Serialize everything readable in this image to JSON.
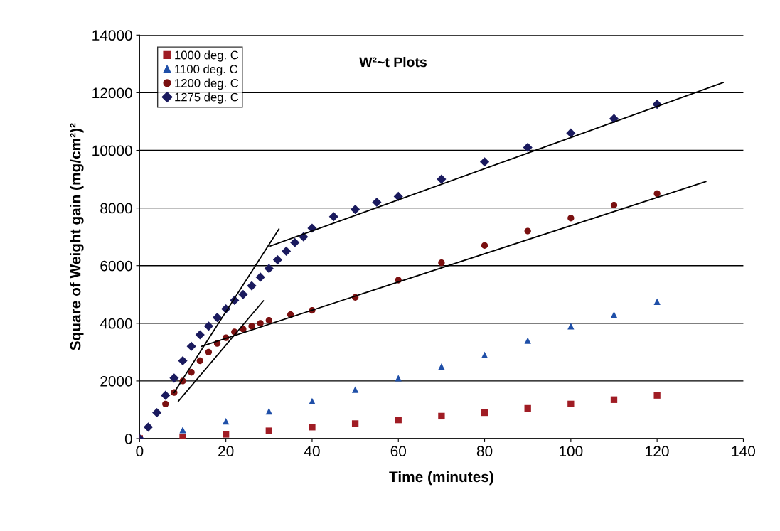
{
  "chart_data": {
    "type": "scatter",
    "title": "W²~t Plots",
    "xlabel": "Time (minutes)",
    "ylabel": "Square of Weight gain (mg/cm²)²",
    "xlim": [
      0,
      140
    ],
    "xticks": [
      0,
      20,
      40,
      60,
      80,
      100,
      120,
      140
    ],
    "ylim": [
      0,
      14000
    ],
    "yticks": [
      0,
      2000,
      4000,
      6000,
      8000,
      10000,
      12000,
      14000
    ],
    "grid": "y",
    "legend": "top left",
    "series": [
      {
        "name": "1000 deg. C",
        "color": "#a01c24",
        "marker": "square",
        "x": [
          0,
          10,
          20,
          30,
          40,
          50,
          60,
          70,
          80,
          90,
          100,
          110,
          120
        ],
        "values": [
          0,
          60,
          150,
          270,
          400,
          520,
          650,
          780,
          900,
          1050,
          1200,
          1350,
          1500
        ]
      },
      {
        "name": "1100 deg. C",
        "color": "#1f4fa8",
        "marker": "triangle",
        "x": [
          0,
          10,
          20,
          30,
          40,
          50,
          60,
          70,
          80,
          90,
          100,
          110,
          120
        ],
        "values": [
          0,
          300,
          600,
          950,
          1300,
          1700,
          2100,
          2500,
          2900,
          3400,
          3900,
          4300,
          4750
        ]
      },
      {
        "name": "1200 deg. C",
        "color": "#7a1010",
        "marker": "circle",
        "x": [
          0,
          6,
          8,
          10,
          12,
          14,
          16,
          18,
          20,
          22,
          24,
          26,
          28,
          30,
          35,
          40,
          50,
          60,
          70,
          80,
          90,
          100,
          110,
          120
        ],
        "values": [
          0,
          1200,
          1600,
          2000,
          2300,
          2700,
          3000,
          3300,
          3500,
          3700,
          3800,
          3900,
          4000,
          4100,
          4300,
          4450,
          4900,
          5500,
          6100,
          6700,
          7200,
          7650,
          8100,
          8500
        ]
      },
      {
        "name": "1275 deg. C",
        "color": "#1a1a5e",
        "marker": "diamond",
        "x": [
          0,
          2,
          4,
          6,
          8,
          10,
          12,
          14,
          16,
          18,
          20,
          22,
          24,
          26,
          28,
          30,
          32,
          34,
          36,
          38,
          40,
          45,
          50,
          55,
          60,
          70,
          80,
          90,
          100,
          110,
          120
        ],
        "values": [
          0,
          400,
          900,
          1500,
          2100,
          2700,
          3200,
          3600,
          3900,
          4200,
          4500,
          4800,
          5000,
          5300,
          5600,
          5900,
          6200,
          6500,
          6800,
          7000,
          7300,
          7700,
          7950,
          8200,
          8400,
          9000,
          9600,
          10100,
          10600,
          11100,
          11600
        ]
      },
      {
        "type": "line",
        "color": "#000000",
        "marker": "none",
        "x": [
          8,
          32.3
        ],
        "values": [
          1600,
          7270
        ]
      },
      {
        "type": "line",
        "color": "#000000",
        "marker": "none",
        "x": [
          9,
          28.7
        ],
        "values": [
          1300,
          4780
        ]
      },
      {
        "type": "line",
        "color": "#000000",
        "marker": "none",
        "x": [
          14.3,
          131.3
        ],
        "values": [
          3200,
          8920
        ]
      },
      {
        "type": "line",
        "color": "#000000",
        "marker": "none",
        "x": [
          30.3,
          135.3
        ],
        "values": [
          6680,
          12350
        ]
      }
    ]
  }
}
